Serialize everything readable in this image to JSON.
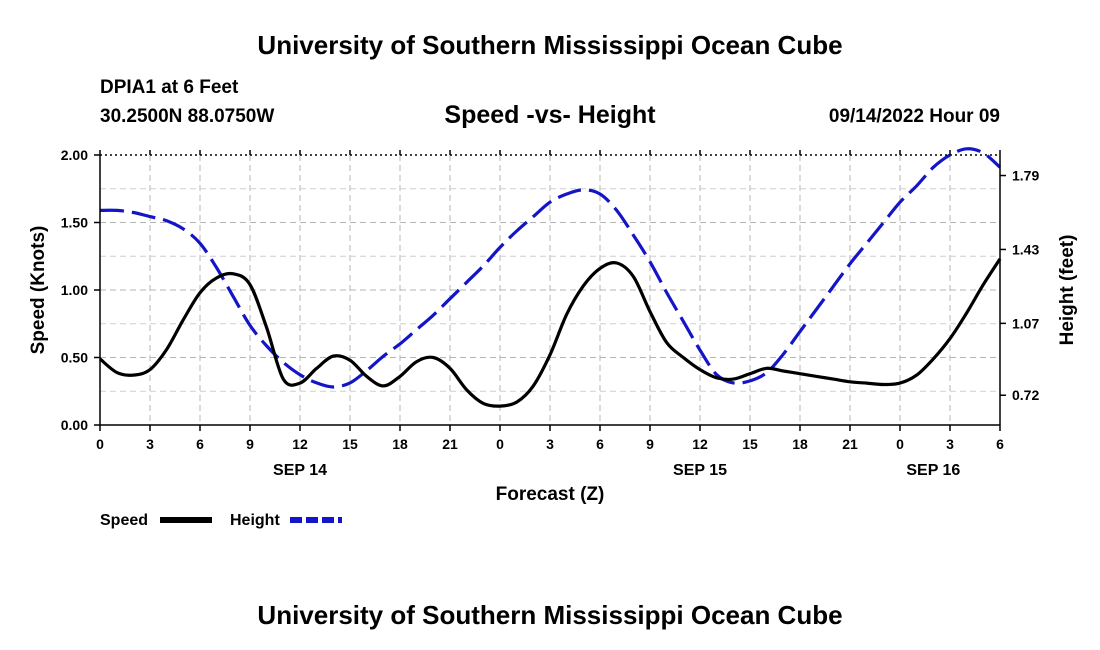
{
  "page": {
    "title": "University of Southern Mississippi Ocean Cube",
    "bottom_title": "University of Southern Mississippi Ocean Cube",
    "station": "DPIA1 at 6 Feet",
    "coordinates": "30.2500N  88.0750W",
    "subtitle": "Speed -vs- Height",
    "datetime": "09/14/2022 Hour 09"
  },
  "chart_data": {
    "type": "line",
    "title": "Speed -vs- Height",
    "xlabel": "Forecast (Z)",
    "ylabel": "Speed (Knots)",
    "y2label": "Height (feet)",
    "x_range": [
      0,
      54
    ],
    "x_unit": "hours from 00Z SEP 14",
    "ylim": [
      0,
      2.0
    ],
    "y2lim": [
      0.575,
      1.89
    ],
    "x_tick_labels": [
      "0",
      "3",
      "6",
      "9",
      "12",
      "15",
      "18",
      "21",
      "0",
      "3",
      "6",
      "9",
      "12",
      "15",
      "18",
      "21",
      "0",
      "3",
      "6"
    ],
    "y_tick_labels": [
      "0.00",
      "0.50",
      "1.00",
      "1.50",
      "2.00"
    ],
    "y_ticks": [
      0,
      0.5,
      1.0,
      1.5,
      2.0
    ],
    "y2_tick_labels": [
      "0.72",
      "1.07",
      "1.43",
      "1.79"
    ],
    "y2_ticks": [
      0.72,
      1.07,
      1.43,
      1.79
    ],
    "date_labels": [
      {
        "label": "SEP 14",
        "x": 12
      },
      {
        "label": "SEP 15",
        "x": 36
      },
      {
        "label": "SEP 16",
        "x": 50
      }
    ],
    "grid": true,
    "legend": "bottom-left",
    "series": [
      {
        "name": "Speed",
        "axis": "left",
        "color": "#000000",
        "dash": "solid",
        "x": [
          0,
          1,
          2,
          3,
          4,
          5,
          6,
          7,
          8,
          9,
          10,
          11,
          12,
          13,
          14,
          15,
          16,
          17,
          18,
          19,
          20,
          21,
          22,
          23,
          24,
          25,
          26,
          27,
          28,
          29,
          30,
          31,
          32,
          33,
          34,
          35,
          36,
          37,
          38,
          39,
          40,
          41,
          42,
          43,
          44,
          45,
          46,
          47,
          48,
          49,
          50,
          51,
          52,
          53,
          54
        ],
        "values": [
          0.49,
          0.39,
          0.37,
          0.41,
          0.56,
          0.78,
          0.98,
          1.09,
          1.12,
          1.04,
          0.72,
          0.34,
          0.31,
          0.42,
          0.51,
          0.48,
          0.36,
          0.29,
          0.36,
          0.47,
          0.5,
          0.42,
          0.26,
          0.16,
          0.14,
          0.17,
          0.29,
          0.52,
          0.82,
          1.03,
          1.16,
          1.2,
          1.1,
          0.84,
          0.61,
          0.5,
          0.41,
          0.35,
          0.34,
          0.38,
          0.42,
          0.4,
          0.38,
          0.36,
          0.34,
          0.32,
          0.31,
          0.3,
          0.31,
          0.37,
          0.49,
          0.64,
          0.83,
          1.04,
          1.23
        ]
      },
      {
        "name": "Height",
        "axis": "right",
        "color": "#1515c8",
        "dash": "dashed",
        "x": [
          0,
          1,
          2,
          3,
          4,
          5,
          6,
          7,
          8,
          9,
          10,
          11,
          12,
          13,
          14,
          15,
          16,
          17,
          18,
          19,
          20,
          21,
          22,
          23,
          24,
          25,
          26,
          27,
          28,
          29,
          30,
          31,
          32,
          33,
          34,
          35,
          36,
          37,
          38,
          39,
          40,
          41,
          42,
          43,
          44,
          45,
          46,
          47,
          48,
          49,
          50,
          51,
          52,
          53,
          54
        ],
        "values": [
          1.62,
          1.62,
          1.61,
          1.59,
          1.57,
          1.53,
          1.46,
          1.34,
          1.2,
          1.06,
          0.96,
          0.88,
          0.82,
          0.78,
          0.76,
          0.78,
          0.84,
          0.91,
          0.97,
          1.04,
          1.11,
          1.19,
          1.27,
          1.35,
          1.44,
          1.52,
          1.59,
          1.66,
          1.7,
          1.72,
          1.7,
          1.62,
          1.5,
          1.37,
          1.22,
          1.08,
          0.94,
          0.82,
          0.78,
          0.79,
          0.83,
          0.92,
          1.03,
          1.14,
          1.25,
          1.36,
          1.46,
          1.56,
          1.66,
          1.74,
          1.83,
          1.89,
          1.92,
          1.9,
          1.83
        ]
      }
    ]
  }
}
